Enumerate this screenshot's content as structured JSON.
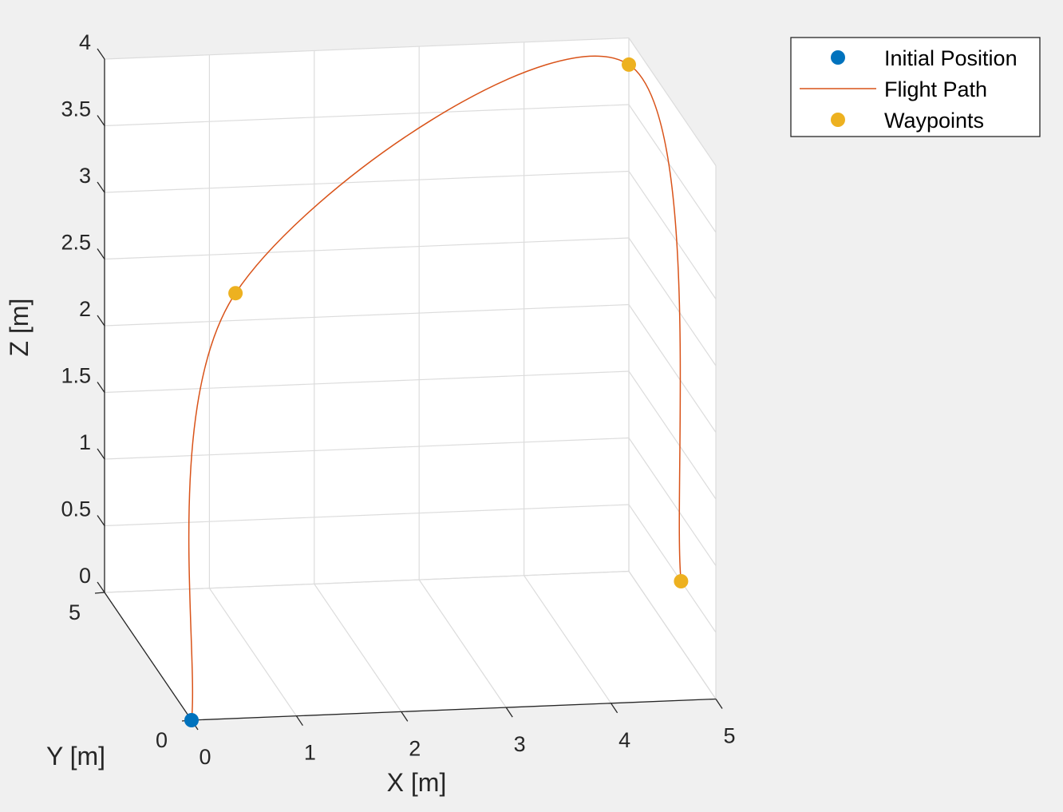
{
  "chart_data": {
    "type": "line",
    "xlabel": "X [m]",
    "ylabel": "Y [m]",
    "zlabel": "Z [m]",
    "xlim": [
      0,
      5
    ],
    "ylim": [
      0,
      5
    ],
    "zlim": [
      0,
      4
    ],
    "x_ticks": [
      "0",
      "1",
      "2",
      "3",
      "4",
      "5"
    ],
    "y_ticks": [
      "0",
      "5"
    ],
    "z_ticks": [
      "0",
      "0.5",
      "1",
      "1.5",
      "2",
      "2.5",
      "3",
      "3.5",
      "4"
    ],
    "grid": true,
    "legend_position": "top-right",
    "colors": {
      "initial": "#0072bd",
      "path": "#d95319",
      "waypoints": "#edb120",
      "grid": "#dcdcdc",
      "axis": "#262626",
      "background": "#f0f0f0",
      "plot_background": "#ffffff"
    },
    "series": [
      {
        "name": "Initial Position",
        "kind": "marker",
        "points": [
          [
            0,
            0,
            0
          ]
        ]
      },
      {
        "name": "Flight Path",
        "kind": "line",
        "points": [
          [
            0,
            0,
            0
          ],
          [
            1,
            3.5,
            2.5
          ],
          [
            5,
            5,
            3.8
          ],
          [
            5,
            2,
            0.5
          ]
        ]
      },
      {
        "name": "Waypoints",
        "kind": "marker",
        "points": [
          [
            1,
            3.5,
            2.5
          ],
          [
            5,
            5,
            3.8
          ],
          [
            5,
            2,
            0.5
          ]
        ]
      }
    ]
  }
}
